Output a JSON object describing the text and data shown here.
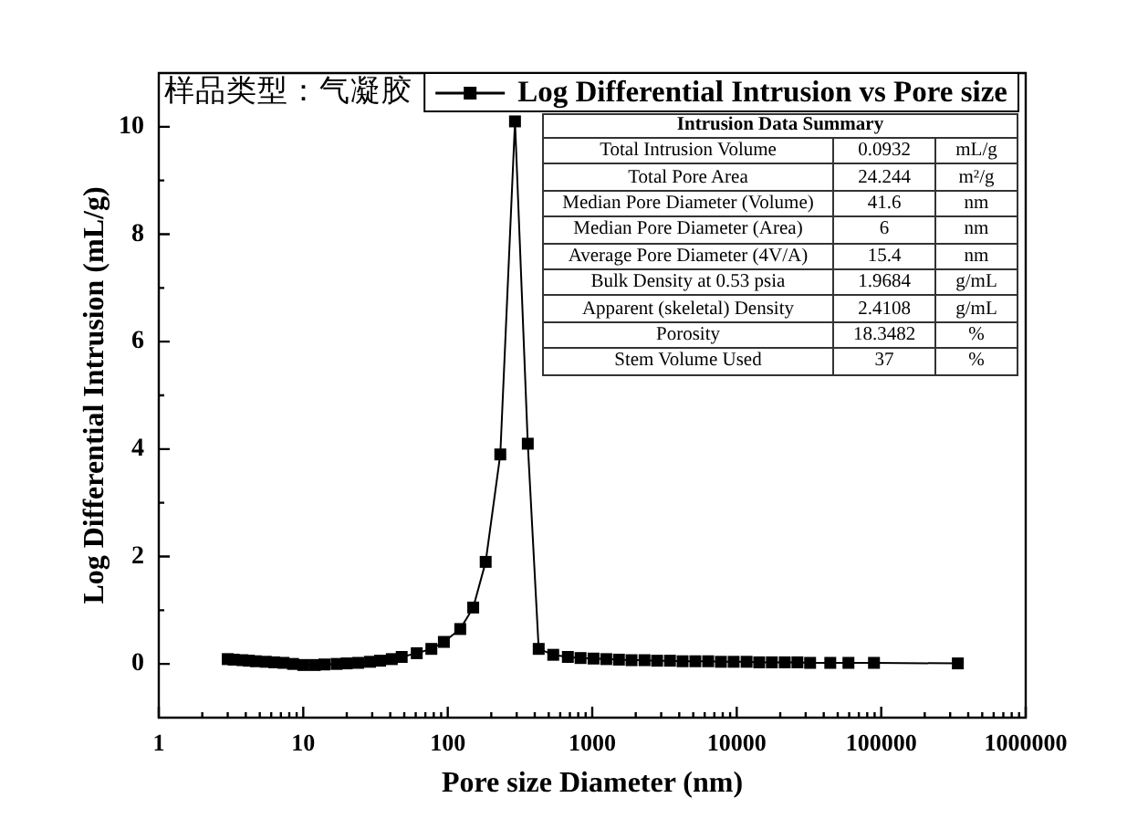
{
  "chart_data": {
    "type": "line",
    "xlabel": "Pore size Diameter (nm)",
    "ylabel": "Log Differential Intrusion (mL/g)",
    "x": [
      3.0,
      3.3,
      3.8,
      4.2,
      4.7,
      5.5,
      6.3,
      7.3,
      8.5,
      10,
      12,
      14,
      17,
      20,
      24,
      29,
      34,
      41,
      48,
      61,
      77,
      94,
      122,
      150,
      183,
      231,
      292,
      358,
      426,
      537,
      678,
      830,
      1020,
      1250,
      1530,
      1870,
      2300,
      2810,
      3450,
      4220,
      5170,
      6340,
      7770,
      9520,
      11700,
      14300,
      17500,
      21500,
      26300,
      32200,
      44400,
      59300,
      89100,
      339000
    ],
    "series": [
      {
        "name": "Log Differential Intrusion vs Pore size",
        "color": "#000000",
        "values": [
          0.09,
          0.08,
          0.07,
          0.06,
          0.05,
          0.04,
          0.03,
          0.02,
          0.0,
          -0.02,
          -0.02,
          -0.01,
          0.0,
          0.01,
          0.02,
          0.04,
          0.06,
          0.09,
          0.13,
          0.2,
          0.28,
          0.41,
          0.65,
          1.05,
          1.9,
          3.9,
          10.1,
          4.1,
          0.28,
          0.17,
          0.13,
          0.11,
          0.1,
          0.09,
          0.08,
          0.07,
          0.07,
          0.06,
          0.06,
          0.05,
          0.05,
          0.05,
          0.04,
          0.04,
          0.04,
          0.03,
          0.03,
          0.03,
          0.03,
          0.02,
          0.02,
          0.02,
          0.02,
          0.01
        ]
      }
    ],
    "log": "x",
    "xlim": [
      1,
      1000000
    ],
    "ylim": [
      -1,
      11
    ],
    "xticks": [
      1,
      {
        "value": 2,
        "label": null
      },
      {
        "value": 3,
        "label": null
      },
      {
        "value": 4,
        "label": null
      },
      {
        "value": 5,
        "label": null
      },
      {
        "value": 6,
        "label": null
      },
      {
        "value": 7,
        "label": null
      },
      {
        "value": 8,
        "label": null
      },
      {
        "value": 9,
        "label": null
      },
      10,
      {
        "value": 20,
        "label": null
      },
      {
        "value": 30,
        "label": null
      },
      {
        "value": 40,
        "label": null
      },
      {
        "value": 50,
        "label": null
      },
      {
        "value": 60,
        "label": null
      },
      {
        "value": 70,
        "label": null
      },
      {
        "value": 80,
        "label": null
      },
      {
        "value": 90,
        "label": null
      },
      100,
      {
        "value": 200,
        "label": null
      },
      {
        "value": 300,
        "label": null
      },
      {
        "value": 400,
        "label": null
      },
      {
        "value": 500,
        "label": null
      },
      {
        "value": 600,
        "label": null
      },
      {
        "value": 700,
        "label": null
      },
      {
        "value": 800,
        "label": null
      },
      {
        "value": 900,
        "label": null
      },
      1000,
      {
        "value": 2000,
        "label": null
      },
      {
        "value": 3000,
        "label": null
      },
      {
        "value": 4000,
        "label": null
      },
      {
        "value": 5000,
        "label": null
      },
      {
        "value": 6000,
        "label": null
      },
      {
        "value": 7000,
        "label": null
      },
      {
        "value": 8000,
        "label": null
      },
      {
        "value": 9000,
        "label": null
      },
      10000,
      {
        "value": 20000,
        "label": null
      },
      {
        "value": 30000,
        "label": null
      },
      {
        "value": 40000,
        "label": null
      },
      {
        "value": 50000,
        "label": null
      },
      {
        "value": 60000,
        "label": null
      },
      {
        "value": 70000,
        "label": null
      },
      {
        "value": 80000,
        "label": null
      },
      {
        "value": 90000,
        "label": null
      },
      100000,
      {
        "value": 200000,
        "label": null
      },
      {
        "value": 300000,
        "label": null
      },
      {
        "value": 400000,
        "label": null
      },
      {
        "value": 500000,
        "label": null
      },
      {
        "value": 600000,
        "label": null
      },
      {
        "value": 700000,
        "label": null
      },
      {
        "value": 800000,
        "label": null
      },
      {
        "value": 900000,
        "label": null
      },
      1000000
    ],
    "yticks": [
      0,
      {
        "value": 1,
        "label": null
      },
      2,
      {
        "value": 3,
        "label": null
      },
      4,
      {
        "value": 5,
        "label": null
      },
      6,
      {
        "value": 7,
        "label": null
      },
      8,
      {
        "value": 9,
        "label": null
      },
      10
    ],
    "grid": false,
    "legend": "top right",
    "marker": "square",
    "line_style": "solid",
    "annotations": [
      "样品类型：气凝胶",
      "Intrusion Data Summary",
      "Total Intrusion Volume",
      "0.0932",
      "mL/g",
      "Total Pore Area",
      "24.244",
      "m²/g",
      "Median Pore Diameter (Volume)",
      "41.6",
      "nm",
      "Median Pore Diameter (Area)",
      "6",
      "nm",
      "Average Pore Diameter (4V/A)",
      "15.4",
      "nm",
      "Bulk Density at 0.53 psia",
      "1.9684",
      "g/mL",
      "Apparent (skeletal) Density",
      "2.4108",
      "g/mL",
      "Porosity",
      "18.3482",
      "%",
      "Stem Volume Used",
      "37",
      "%"
    ]
  }
}
